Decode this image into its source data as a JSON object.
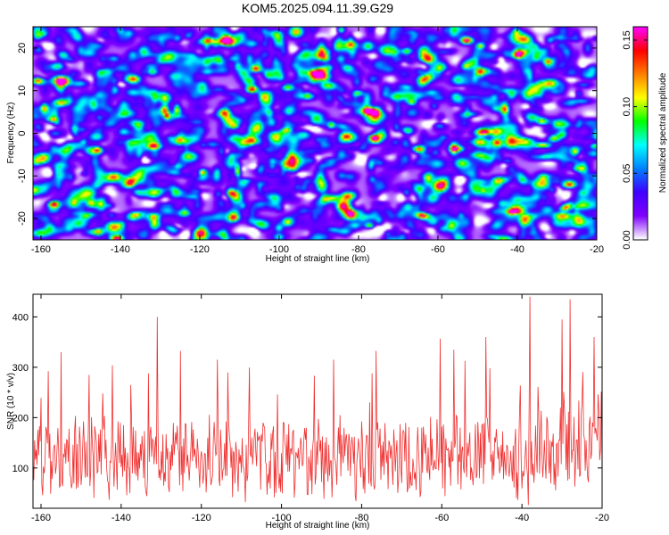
{
  "title": "KOM5.2025.094.11.39.G29",
  "chart_data": [
    {
      "type": "heatmap",
      "title": "KOM5.2025.094.11.39.G29",
      "xlabel": "Height of straight line (km)",
      "ylabel": "Frequency (Hz)",
      "xlim": [
        -162,
        -20
      ],
      "ylim": [
        -25,
        25
      ],
      "xticks": [
        -160,
        -140,
        -120,
        -100,
        -80,
        -60,
        -40,
        -20
      ],
      "yticks": [
        -20,
        -10,
        0,
        10,
        20
      ],
      "colorbar": {
        "label": "Normalized spectral amplitude",
        "range": [
          0,
          0.16
        ],
        "ticks": [
          "0.00",
          "0.05",
          "0.10",
          "0.15"
        ],
        "colormap": [
          "#ffffff",
          "#8000ff",
          "#4000ff",
          "#0080ff",
          "#00ffff",
          "#00ff00",
          "#ffff00",
          "#ff8000",
          "#ff0000",
          "#ff00ff"
        ]
      },
      "background_level": 0.01,
      "peaks": [
        {
          "x": -161,
          "y": 12.5,
          "value": 0.12
        },
        {
          "x": -155,
          "y": 12.3,
          "value": 0.11
        },
        {
          "x": -157,
          "y": -16.5,
          "value": 0.13
        },
        {
          "x": -141,
          "y": -24.5,
          "value": 0.14
        },
        {
          "x": -132,
          "y": -2.8,
          "value": 0.11
        },
        {
          "x": -107,
          "y": 10.5,
          "value": 0.13
        },
        {
          "x": -98,
          "y": 11,
          "value": 0.09
        },
        {
          "x": -82,
          "y": 21,
          "value": 0.09
        },
        {
          "x": -76,
          "y": -1.5,
          "value": 0.1
        },
        {
          "x": -65,
          "y": -3.5,
          "value": 0.11
        },
        {
          "x": -53,
          "y": 22,
          "value": 0.15
        },
        {
          "x": -49,
          "y": 0.5,
          "value": 0.1
        },
        {
          "x": -40,
          "y": 18.5,
          "value": 0.11
        },
        {
          "x": -34,
          "y": 3,
          "value": 0.09
        },
        {
          "x": -31,
          "y": -1,
          "value": 0.09
        },
        {
          "x": -77,
          "y": 5.5,
          "value": 0.09
        },
        {
          "x": -118,
          "y": 22,
          "value": 0.09
        },
        {
          "x": -124,
          "y": -18.5,
          "value": 0.08
        }
      ]
    },
    {
      "type": "line",
      "xlabel": "Height of straight line (km)",
      "ylabel": "SNR (10 * v/v)",
      "xlim": [
        -162,
        -20
      ],
      "ylim": [
        20,
        445
      ],
      "xticks": [
        -160,
        -140,
        -120,
        -100,
        -80,
        -60,
        -40,
        -20
      ],
      "yticks": [
        100,
        200,
        300,
        400
      ],
      "color": "#f03030",
      "x_step_km": 0.2,
      "baseline": {
        "x": [
          -162,
          -130,
          -100,
          -70,
          -40,
          -20
        ],
        "y": [
          120,
          125,
          115,
          120,
          130,
          160
        ]
      },
      "noise_amplitude": 90,
      "spikes": [
        {
          "x": -131,
          "y": 400
        },
        {
          "x": -38,
          "y": 440
        },
        {
          "x": -28,
          "y": 435
        },
        {
          "x": -22,
          "y": 360
        },
        {
          "x": -49,
          "y": 360
        },
        {
          "x": -116,
          "y": 315
        },
        {
          "x": -57,
          "y": 335
        },
        {
          "x": -155,
          "y": 330
        },
        {
          "x": -87,
          "y": 315
        },
        {
          "x": -30,
          "y": 395
        }
      ]
    }
  ]
}
